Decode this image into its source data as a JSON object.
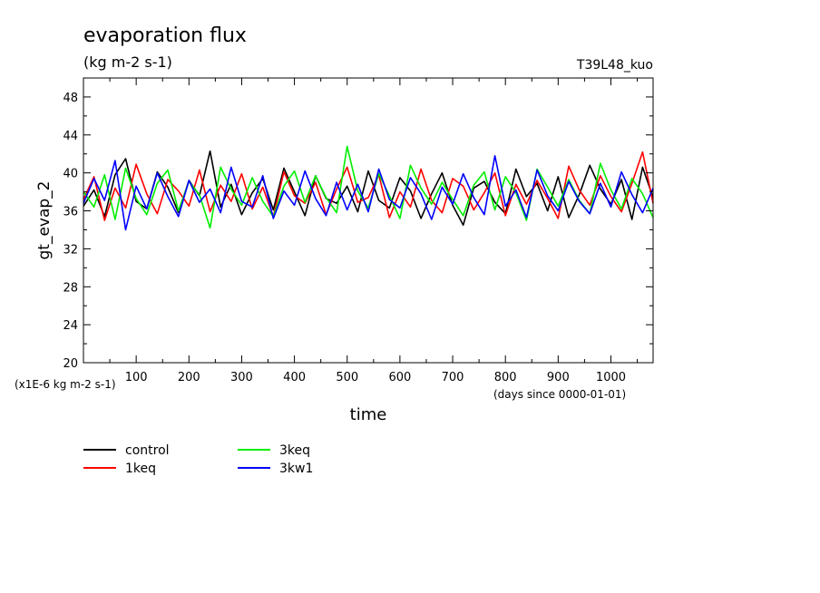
{
  "chart_data": {
    "type": "line",
    "title": "evaporation flux",
    "subtitle": "(kg m-2 s-1)",
    "tag": "T39L48_kuo",
    "ylabel": "gt_evap_2",
    "xlabel": "time",
    "y_unit_note": "(x1E-6 kg m-2 s-1)",
    "x_unit_note": "(days since 0000-01-01)",
    "xlim": [
      0,
      1080
    ],
    "ylim": [
      20,
      50
    ],
    "x_ticks": [
      100,
      200,
      300,
      400,
      500,
      600,
      700,
      800,
      900,
      1000
    ],
    "y_ticks": [
      20,
      24,
      28,
      32,
      36,
      40,
      44,
      48
    ],
    "x_tick_labels": [
      "100",
      "200",
      "300",
      "400",
      "500",
      "600",
      "700",
      "800",
      "900",
      "1000"
    ],
    "y_tick_labels": [
      "20",
      "24",
      "28",
      "32",
      "36",
      "40",
      "44",
      "48"
    ],
    "grid": false,
    "legend_position": "bottom-left",
    "series": [
      {
        "name": "control",
        "color": "#000000",
        "x": [
          0,
          20,
          40,
          60,
          80,
          100,
          120,
          140,
          160,
          180,
          200,
          220,
          240,
          260,
          280,
          300,
          320,
          340,
          360,
          380,
          400,
          420,
          440,
          460,
          480,
          500,
          520,
          540,
          560,
          580,
          600,
          620,
          640,
          660,
          680,
          700,
          720,
          740,
          760,
          780,
          800,
          820,
          840,
          860,
          880,
          900,
          920,
          940,
          960,
          980,
          1000,
          1020,
          1040,
          1060,
          1080
        ],
        "values": [
          36.5,
          38.2,
          35.4,
          39.8,
          41.5,
          37.0,
          36.2,
          40.1,
          38.5,
          35.8,
          39.2,
          37.6,
          42.3,
          36.4,
          38.8,
          35.6,
          37.9,
          39.4,
          36.1,
          40.5,
          38.0,
          35.5,
          39.7,
          37.3,
          36.8,
          38.6,
          35.9,
          40.2,
          37.1,
          36.3,
          39.5,
          38.1,
          35.2,
          37.8,
          40.0,
          36.6,
          34.5,
          38.4,
          39.1,
          36.9,
          35.7,
          40.4,
          37.5,
          38.9,
          36.0,
          39.6,
          35.3,
          37.7,
          40.8,
          38.3,
          36.7,
          39.3,
          35.1,
          40.6,
          37.4
        ]
      },
      {
        "name": "1keq",
        "color": "#ff0000",
        "x": [
          0,
          20,
          40,
          60,
          80,
          100,
          120,
          140,
          160,
          180,
          200,
          220,
          240,
          260,
          280,
          300,
          320,
          340,
          360,
          380,
          400,
          420,
          440,
          460,
          480,
          500,
          520,
          540,
          560,
          580,
          600,
          620,
          640,
          660,
          680,
          700,
          720,
          740,
          760,
          780,
          800,
          820,
          840,
          860,
          880,
          900,
          920,
          940,
          960,
          980,
          1000,
          1020,
          1040,
          1060,
          1080
        ],
        "values": [
          37.2,
          39.6,
          35.0,
          38.4,
          36.3,
          40.9,
          37.8,
          35.7,
          39.3,
          38.1,
          36.5,
          40.3,
          35.9,
          38.7,
          37.0,
          39.9,
          36.2,
          38.5,
          35.4,
          40.1,
          37.6,
          36.8,
          39.0,
          35.6,
          38.3,
          40.6,
          36.9,
          37.4,
          39.8,
          35.3,
          38.0,
          36.4,
          40.4,
          37.1,
          35.8,
          39.4,
          38.6,
          36.1,
          37.9,
          40.0,
          35.5,
          38.8,
          36.7,
          39.2,
          37.3,
          35.2,
          40.7,
          38.2,
          36.6,
          39.7,
          37.5,
          35.9,
          38.9,
          42.2,
          36.8
        ]
      },
      {
        "name": "3keq",
        "color": "#00ee00",
        "x": [
          0,
          20,
          40,
          60,
          80,
          100,
          120,
          140,
          160,
          180,
          200,
          220,
          240,
          260,
          280,
          300,
          320,
          340,
          360,
          380,
          400,
          420,
          440,
          460,
          480,
          500,
          520,
          540,
          560,
          580,
          600,
          620,
          640,
          660,
          680,
          700,
          720,
          740,
          760,
          780,
          800,
          820,
          840,
          860,
          880,
          900,
          920,
          940,
          960,
          980,
          1000,
          1020,
          1040,
          1060,
          1080
        ],
        "values": [
          38.0,
          36.4,
          39.8,
          35.1,
          40.5,
          37.3,
          35.6,
          38.9,
          40.3,
          36.0,
          39.1,
          37.7,
          34.2,
          40.6,
          38.3,
          36.6,
          39.5,
          37.0,
          35.4,
          38.6,
          40.2,
          36.9,
          39.7,
          37.4,
          35.8,
          42.8,
          38.1,
          36.3,
          39.9,
          37.6,
          35.2,
          40.8,
          38.4,
          36.7,
          39.0,
          37.2,
          35.5,
          38.7,
          40.1,
          36.1,
          39.6,
          37.9,
          35.0,
          40.4,
          38.5,
          36.5,
          39.3,
          37.1,
          35.7,
          41.0,
          38.2,
          36.2,
          39.4,
          37.8,
          35.3
        ]
      },
      {
        "name": "3kw1",
        "color": "#0000ff",
        "x": [
          0,
          20,
          40,
          60,
          80,
          100,
          120,
          140,
          160,
          180,
          200,
          220,
          240,
          260,
          280,
          300,
          320,
          340,
          360,
          380,
          400,
          420,
          440,
          460,
          480,
          500,
          520,
          540,
          560,
          580,
          600,
          620,
          640,
          660,
          680,
          700,
          720,
          740,
          760,
          780,
          800,
          820,
          840,
          860,
          880,
          900,
          920,
          940,
          960,
          980,
          1000,
          1020,
          1040,
          1060,
          1080
        ],
        "values": [
          36.8,
          39.4,
          37.1,
          41.3,
          34.0,
          38.6,
          36.2,
          40.0,
          37.5,
          35.4,
          39.2,
          36.9,
          38.3,
          35.8,
          40.6,
          37.0,
          36.4,
          39.7,
          35.2,
          38.1,
          36.6,
          40.2,
          37.3,
          35.5,
          39.0,
          36.1,
          38.8,
          35.9,
          40.4,
          37.2,
          36.3,
          39.5,
          37.8,
          35.1,
          38.5,
          36.7,
          39.9,
          37.4,
          35.6,
          41.8,
          36.5,
          38.2,
          35.3,
          40.3,
          37.6,
          36.0,
          39.1,
          37.0,
          35.7,
          38.9,
          36.4,
          40.1,
          37.7,
          35.8,
          38.4
        ]
      }
    ]
  }
}
